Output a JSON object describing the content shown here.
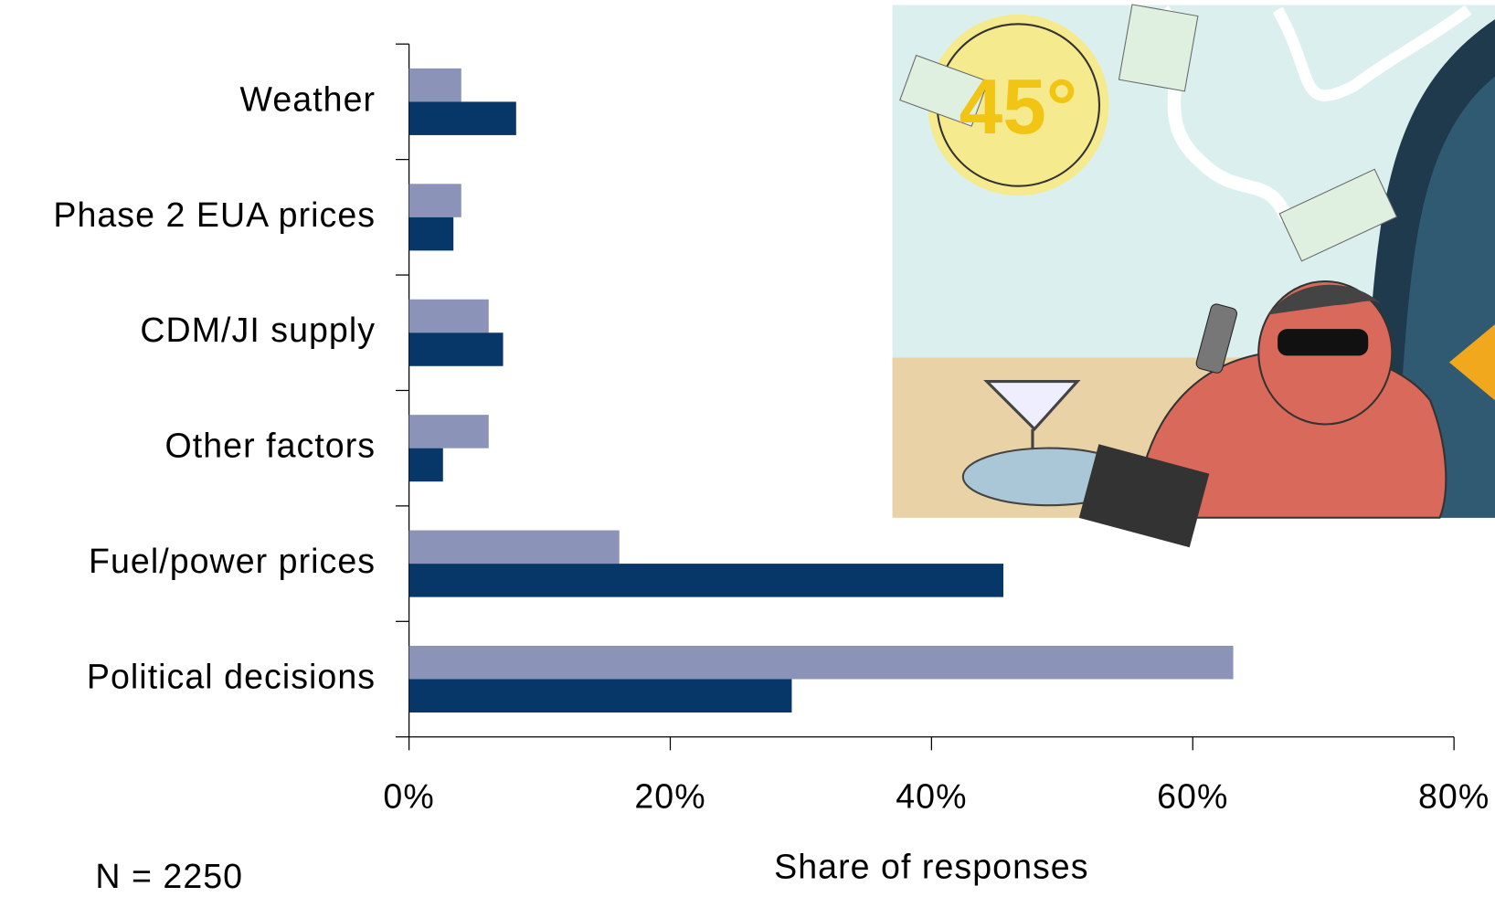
{
  "chart_data": {
    "type": "hbar",
    "categories": [
      "Weather",
      "Phase 2 EUA prices",
      "CDM/JI supply",
      "Other factors",
      "Fuel/power prices",
      "Political decisions"
    ],
    "series": [
      {
        "color": "#8b93b8",
        "values": [
          4.0,
          4.0,
          6.1,
          6.1,
          16.1,
          63.1
        ]
      },
      {
        "color": "#063768",
        "values": [
          8.2,
          3.4,
          7.2,
          2.6,
          45.5,
          29.3
        ]
      }
    ],
    "xlim": [
      0,
      80
    ],
    "xticks": [
      {
        "value": 0,
        "label": "0%"
      },
      {
        "value": 20,
        "label": "20%"
      },
      {
        "value": 40,
        "label": "40%"
      },
      {
        "value": 60,
        "label": "60%"
      },
      {
        "value": 80,
        "label": "80%"
      }
    ],
    "x_label": "Share of responses",
    "annotation": "N = 2250",
    "illustration_text": "45°"
  }
}
